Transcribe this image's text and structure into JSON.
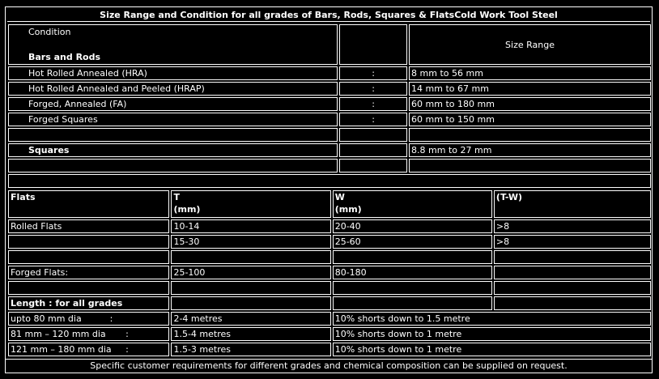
{
  "title": "Size Range and Condition for all grades of Bars, Rods, Squares & FlatsCold Work Tool Steel",
  "top": {
    "condition_label": "Condition",
    "bars_rods_label": "Bars and Rods",
    "size_range_label": "Size Range",
    "rows": [
      {
        "name": "Hot Rolled Annealed (HRA)",
        "sep": ":",
        "range": "8 mm to 56 mm"
      },
      {
        "name": "Hot Rolled Annealed and Peeled (HRAP)",
        "sep": ":",
        "range": "14 mm to 67 mm"
      },
      {
        "name": "Forged, Annealed (FA)",
        "sep": ":",
        "range": "60 mm to 180 mm"
      },
      {
        "name": "Forged Squares",
        "sep": ":",
        "range": "60 mm to 150 mm"
      }
    ],
    "squares_label": "Squares",
    "squares_range": "8.8 mm to 27 mm"
  },
  "flats": {
    "header": {
      "col1": "Flats",
      "col2": "T",
      "col2_unit": "(mm)",
      "col3": "W",
      "col3_unit": "(mm)",
      "col4": "(T-W)"
    },
    "rows": [
      {
        "c1": "Rolled Flats",
        "c2": "10-14",
        "c3": "20-40",
        "c4": ">8"
      },
      {
        "c1": "",
        "c2": "15-30",
        "c3": "25-60",
        "c4": ">8"
      },
      {
        "c1": "",
        "c2": "",
        "c3": "",
        "c4": ""
      },
      {
        "c1": "Forged Flats:",
        "c2": "25-100",
        "c3": "80-180",
        "c4": ""
      },
      {
        "c1": "",
        "c2": "",
        "c3": "",
        "c4": ""
      }
    ]
  },
  "length": {
    "label": "Length : for all grades",
    "rows": [
      {
        "c1": "upto 80 mm dia          :",
        "c2": "2-4 metres",
        "c3": "10% shorts down to 1.5 metre"
      },
      {
        "c1": "81 mm – 120 mm dia       :",
        "c2": "1.5-4 metres",
        "c3": "10% shorts down to 1 metre"
      },
      {
        "c1": "121 mm – 180 mm dia     :",
        "c2": "1.5-3 metres",
        "c3": "10% shorts down to 1 metre"
      }
    ]
  },
  "footer": "Specific customer requirements for different grades and chemical composition can be supplied on request."
}
